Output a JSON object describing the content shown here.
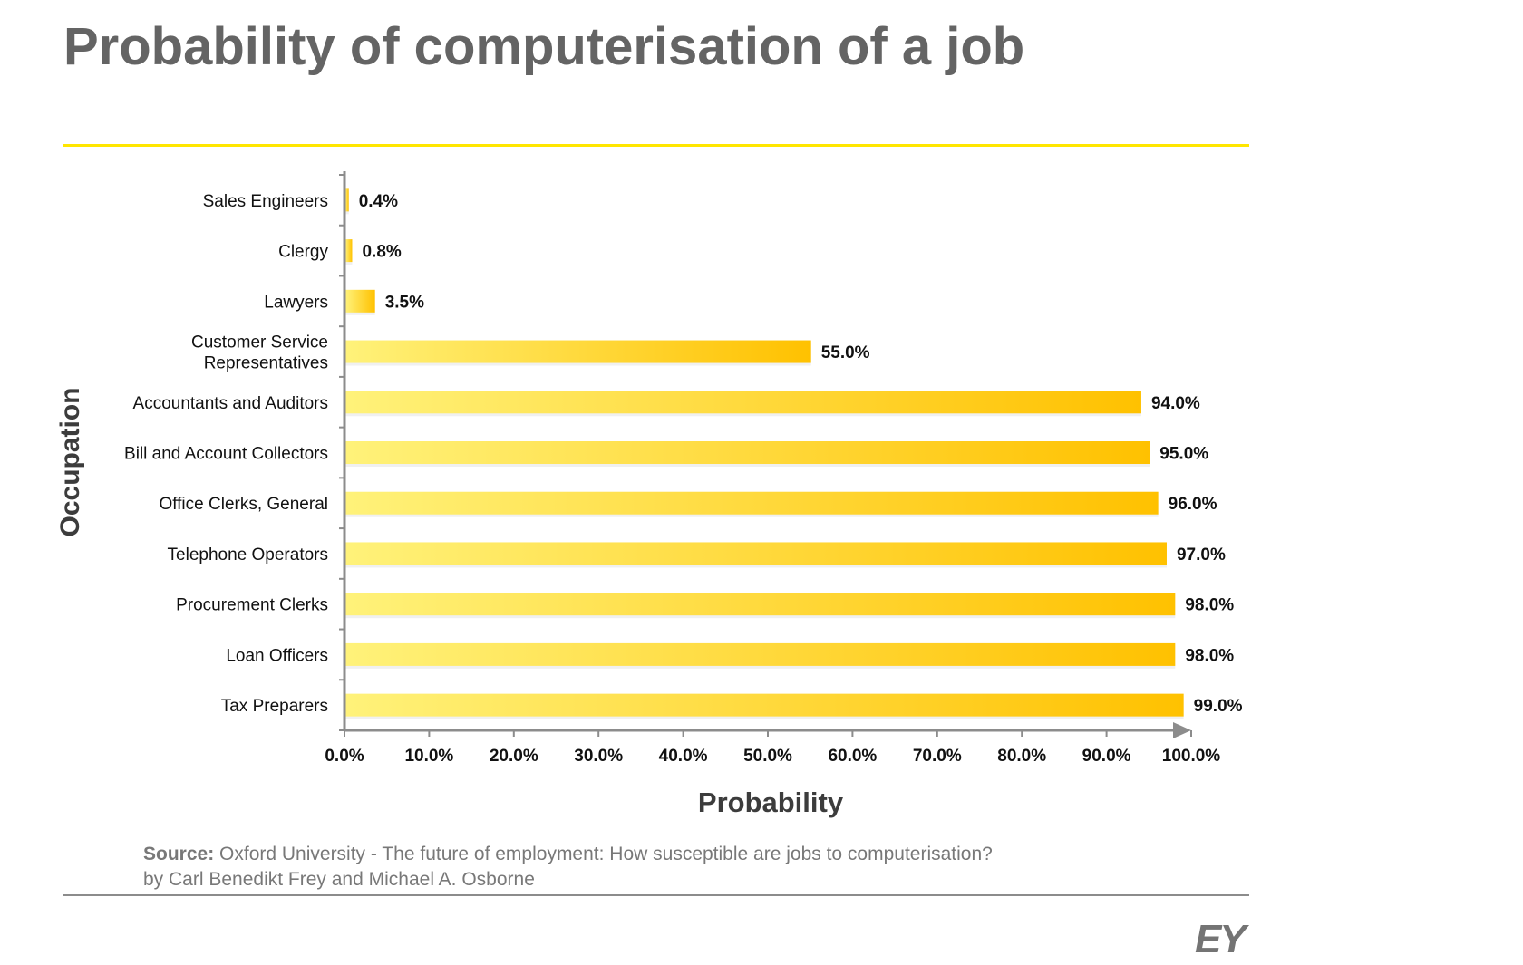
{
  "title": "Probability of computerisation of a job",
  "colors": {
    "title": "#646464",
    "accent_rule": "#ffe600",
    "bar_start": "#fff27a",
    "bar_end": "#ffc100",
    "axis": "#8c8c8c"
  },
  "chart_data": {
    "type": "bar",
    "orientation": "horizontal",
    "xlabel": "Probability",
    "ylabel": "Occupation",
    "xlim": [
      0,
      100
    ],
    "x_ticks": [
      "0.0%",
      "10.0%",
      "20.0%",
      "30.0%",
      "40.0%",
      "50.0%",
      "60.0%",
      "70.0%",
      "80.0%",
      "90.0%",
      "100.0%"
    ],
    "categories": [
      [
        "Sales Engineers"
      ],
      [
        "Clergy"
      ],
      [
        "Lawyers"
      ],
      [
        "Customer Service",
        "Representatives"
      ],
      [
        "Accountants and Auditors"
      ],
      [
        "Bill and Account Collectors"
      ],
      [
        "Office Clerks, General"
      ],
      [
        "Telephone Operators"
      ],
      [
        "Procurement Clerks"
      ],
      [
        "Loan Officers"
      ],
      [
        "Tax Preparers"
      ]
    ],
    "values": [
      0.4,
      0.8,
      3.5,
      55.0,
      94.0,
      95.0,
      96.0,
      97.0,
      98.0,
      98.0,
      99.0
    ],
    "value_labels": [
      "0.4%",
      "0.8%",
      "3.5%",
      "55.0%",
      "94.0%",
      "95.0%",
      "96.0%",
      "97.0%",
      "98.0%",
      "98.0%",
      "99.0%"
    ],
    "grid": false,
    "legend": "none"
  },
  "source": {
    "label": "Source:",
    "text": " Oxford University - The future of employment: How susceptible are jobs to computerisation?",
    "line2": "by Carl Benedikt Frey and Michael A. Osborne"
  },
  "logo": "EY"
}
